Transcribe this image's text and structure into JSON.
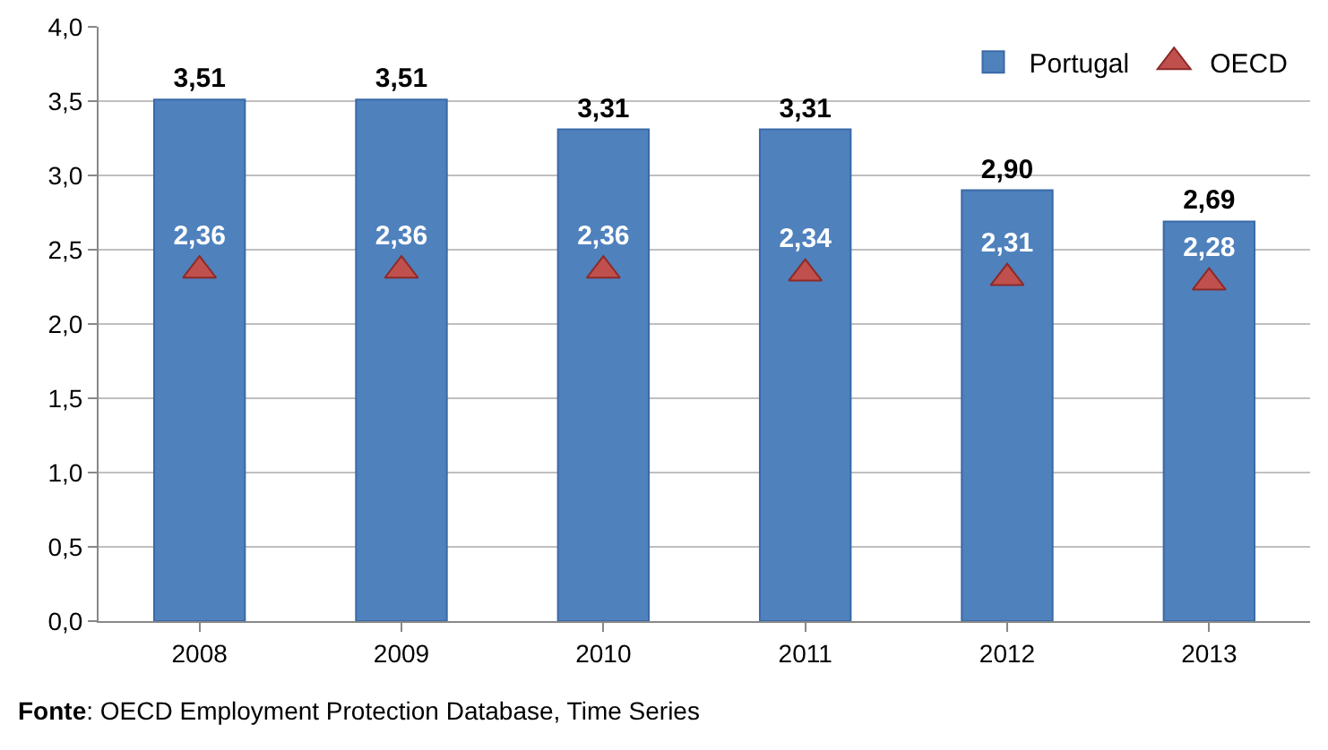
{
  "chart_data": {
    "type": "bar",
    "categories": [
      "2008",
      "2009",
      "2010",
      "2011",
      "2012",
      "2013"
    ],
    "series": [
      {
        "name": "Portugal",
        "color": "#4f81bd",
        "values": [
          3.51,
          3.51,
          3.31,
          3.31,
          2.9,
          2.69
        ],
        "value_labels": [
          "3,51",
          "3,51",
          "3,31",
          "3,31",
          "2,90",
          "2,69"
        ]
      },
      {
        "name": "OECD",
        "type": "scatter",
        "color": "#c0504d",
        "values": [
          2.36,
          2.36,
          2.36,
          2.34,
          2.31,
          2.28
        ],
        "value_labels": [
          "2,36",
          "2,36",
          "2,36",
          "2,34",
          "2,31",
          "2,28"
        ]
      }
    ],
    "marker": "triangle",
    "ylim": [
      0,
      4
    ],
    "yticks": [
      {
        "value": 0,
        "label": "0,0"
      },
      {
        "value": 0.5,
        "label": "0,5"
      },
      {
        "value": 1,
        "label": "1,0"
      },
      {
        "value": 1.5,
        "label": "1,5"
      },
      {
        "value": 2,
        "label": "2,0"
      },
      {
        "value": 2.5,
        "label": "2,5"
      },
      {
        "value": 3,
        "label": "3,0"
      },
      {
        "value": 3.5,
        "label": "3,5"
      },
      {
        "value": 4,
        "label": "4,0"
      }
    ],
    "grid": "y",
    "legend": "top right",
    "annotations": [
      "Fonte: OECD Employment Protection Database, Time Series"
    ]
  }
}
